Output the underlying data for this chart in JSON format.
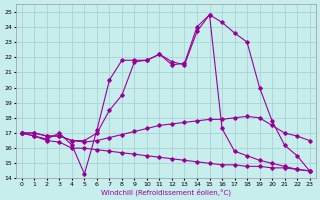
{
  "xlabel": "Windchill (Refroidissement éolien,°C)",
  "xlim": [
    -0.5,
    23.5
  ],
  "ylim": [
    14,
    25.5
  ],
  "yticks": [
    14,
    15,
    16,
    17,
    18,
    19,
    20,
    21,
    22,
    23,
    24,
    25
  ],
  "xticks": [
    0,
    1,
    2,
    3,
    4,
    5,
    6,
    7,
    8,
    9,
    10,
    11,
    12,
    13,
    14,
    15,
    16,
    17,
    18,
    19,
    20,
    21,
    22,
    23
  ],
  "bg_color": "#c8eded",
  "grid_color": "#a8d4d4",
  "line_color": "#990099",
  "line1_x": [
    0,
    1,
    2,
    3,
    4,
    5,
    6,
    7,
    8,
    9,
    10,
    11,
    12,
    13,
    14,
    15,
    16,
    17,
    18,
    19,
    20,
    21,
    22,
    23
  ],
  "line1_y": [
    17.0,
    16.8,
    16.6,
    17.0,
    16.2,
    14.3,
    17.2,
    20.5,
    21.8,
    21.8,
    21.8,
    22.2,
    21.7,
    21.5,
    23.7,
    24.8,
    17.3,
    15.8,
    15.5,
    15.2,
    15.0,
    14.8,
    14.6,
    14.5
  ],
  "line2_x": [
    0,
    1,
    2,
    3,
    4,
    5,
    6,
    7,
    8,
    9,
    10,
    11,
    12,
    13,
    14,
    15,
    16,
    17,
    18,
    19,
    20,
    21,
    22,
    23
  ],
  "line2_y": [
    17.0,
    17.0,
    16.8,
    16.8,
    16.5,
    16.5,
    17.0,
    18.5,
    19.5,
    21.7,
    21.8,
    22.2,
    21.5,
    21.6,
    24.0,
    24.8,
    24.3,
    23.6,
    23.0,
    20.0,
    17.8,
    16.2,
    15.5,
    14.5
  ],
  "line3_x": [
    0,
    1,
    2,
    3,
    4,
    5,
    6,
    7,
    8,
    9,
    10,
    11,
    12,
    13,
    14,
    15,
    16,
    17,
    18,
    19,
    20,
    21,
    22,
    23
  ],
  "line3_y": [
    17.0,
    17.0,
    16.8,
    16.8,
    16.5,
    16.4,
    16.5,
    16.7,
    16.9,
    17.1,
    17.3,
    17.5,
    17.6,
    17.7,
    17.8,
    17.9,
    17.9,
    18.0,
    18.1,
    18.0,
    17.5,
    17.0,
    16.8,
    16.5
  ],
  "line4_x": [
    0,
    1,
    2,
    3,
    4,
    5,
    6,
    7,
    8,
    9,
    10,
    11,
    12,
    13,
    14,
    15,
    16,
    17,
    18,
    19,
    20,
    21,
    22,
    23
  ],
  "line4_y": [
    17.0,
    16.8,
    16.5,
    16.4,
    16.0,
    16.0,
    15.9,
    15.8,
    15.7,
    15.6,
    15.5,
    15.4,
    15.3,
    15.2,
    15.1,
    15.0,
    14.9,
    14.9,
    14.8,
    14.8,
    14.7,
    14.7,
    14.6,
    14.5
  ]
}
